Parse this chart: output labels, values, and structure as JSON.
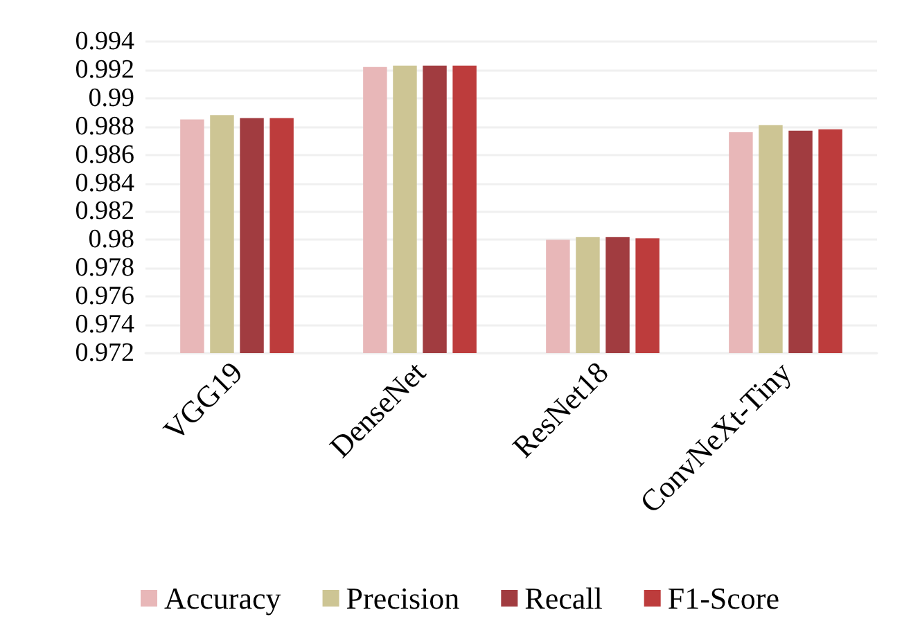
{
  "chart_data": {
    "type": "bar",
    "categories": [
      "VGG19",
      "DenseNet",
      "ResNet18",
      "ConvNeXt-Tiny"
    ],
    "series": [
      {
        "name": "Accuracy",
        "color": "#e8b7b8",
        "values": [
          0.9885,
          0.9922,
          0.98,
          0.9876
        ]
      },
      {
        "name": "Precision",
        "color": "#cdc594",
        "values": [
          0.9888,
          0.9923,
          0.9802,
          0.9881
        ]
      },
      {
        "name": "Recall",
        "color": "#a13c40",
        "values": [
          0.9886,
          0.9923,
          0.9802,
          0.9877
        ]
      },
      {
        "name": "F1-Score",
        "color": "#bd3c3c",
        "values": [
          0.9886,
          0.9923,
          0.9801,
          0.9878
        ]
      }
    ],
    "ylim": [
      0.972,
      0.994
    ],
    "yticks": [
      0.972,
      0.974,
      0.976,
      0.978,
      0.98,
      0.982,
      0.984,
      0.986,
      0.988,
      0.99,
      0.992,
      0.994
    ],
    "grid": "y",
    "legend": "bottom"
  }
}
